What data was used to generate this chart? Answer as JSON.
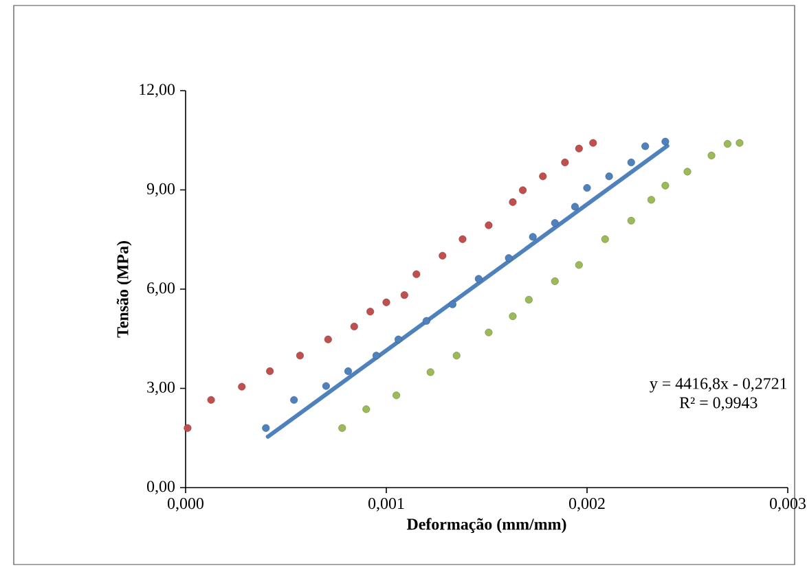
{
  "chart_data": {
    "type": "scatter",
    "xlabel": "Deformação (mm/mm)",
    "ylabel": "Tensão (MPa)",
    "xlim": [
      0,
      0.003
    ],
    "ylim": [
      0,
      12
    ],
    "xticks": [
      {
        "value": 0,
        "label": "0,000"
      },
      {
        "value": 0.001,
        "label": "0,001"
      },
      {
        "value": 0.002,
        "label": "0,002"
      },
      {
        "value": 0.003,
        "label": "0,003"
      }
    ],
    "yticks": [
      {
        "value": 0,
        "label": "0,00"
      },
      {
        "value": 3,
        "label": "3,00"
      },
      {
        "value": 6,
        "label": "6,00"
      },
      {
        "value": 9,
        "label": "9,00"
      },
      {
        "value": 12,
        "label": "12,00"
      }
    ],
    "grid": false,
    "annotations": [
      "y = 4416,8x - 0,2721",
      "R² = 0,9943"
    ],
    "series": [
      {
        "marker": "circle",
        "color": "#c0504d",
        "x": [
          1e-05,
          0.000127,
          0.00028,
          0.00042,
          0.00057,
          0.00071,
          0.00084,
          0.00092,
          0.001,
          0.00109,
          0.00115,
          0.00128,
          0.00138,
          0.00151,
          0.00163,
          0.00168,
          0.00178,
          0.00189,
          0.00196,
          0.00203
        ],
        "values": [
          1.8,
          2.65,
          3.05,
          3.52,
          3.99,
          4.48,
          4.87,
          5.32,
          5.6,
          5.82,
          6.45,
          7.01,
          7.51,
          7.93,
          8.63,
          8.99,
          9.41,
          9.83,
          10.25,
          10.42
        ]
      },
      {
        "marker": "circle",
        "color": "#4f81bd",
        "x": [
          0.0004,
          0.00054,
          0.0007,
          0.00081,
          0.00095,
          0.00106,
          0.0012,
          0.00133,
          0.00146,
          0.00161,
          0.00173,
          0.00184,
          0.00194,
          0.002,
          0.00211,
          0.00222,
          0.00229,
          0.00239
        ],
        "values": [
          1.8,
          2.65,
          3.07,
          3.52,
          3.99,
          4.48,
          5.04,
          5.54,
          6.31,
          6.94,
          7.58,
          8.0,
          8.49,
          9.06,
          9.41,
          9.83,
          10.32,
          10.46
        ]
      },
      {
        "marker": "circle",
        "color": "#9bbb59",
        "x": [
          0.00078,
          0.0009,
          0.00105,
          0.00122,
          0.00135,
          0.00151,
          0.00163,
          0.00171,
          0.00184,
          0.00196,
          0.00209,
          0.00222,
          0.00232,
          0.00239,
          0.0025,
          0.00262,
          0.0027,
          0.00276
        ],
        "values": [
          1.8,
          2.37,
          2.79,
          3.49,
          3.99,
          4.69,
          5.18,
          5.68,
          6.24,
          6.73,
          7.51,
          8.07,
          8.7,
          9.13,
          9.55,
          10.04,
          10.39,
          10.42
        ]
      },
      {
        "type": "line",
        "marker": "none",
        "color": "#4f81bd",
        "x": [
          0.00041,
          0.0024
        ],
        "values": [
          1.54,
          10.33
        ]
      }
    ]
  }
}
